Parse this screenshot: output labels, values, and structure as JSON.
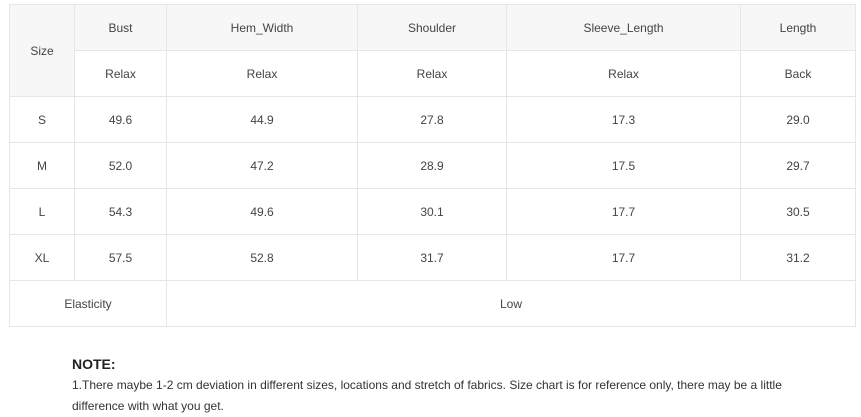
{
  "table": {
    "size_header": "Size",
    "columns": [
      {
        "name": "Bust",
        "sub": "Relax"
      },
      {
        "name": "Hem_Width",
        "sub": "Relax"
      },
      {
        "name": "Shoulder",
        "sub": "Relax"
      },
      {
        "name": "Sleeve_Length",
        "sub": "Relax"
      },
      {
        "name": "Length",
        "sub": "Back"
      }
    ],
    "rows": [
      {
        "size": "S",
        "values": [
          "49.6",
          "44.9",
          "27.8",
          "17.3",
          "29.0"
        ]
      },
      {
        "size": "M",
        "values": [
          "52.0",
          "47.2",
          "28.9",
          "17.5",
          "29.7"
        ]
      },
      {
        "size": "L",
        "values": [
          "54.3",
          "49.6",
          "30.1",
          "17.7",
          "30.5"
        ]
      },
      {
        "size": "XL",
        "values": [
          "57.5",
          "52.8",
          "31.7",
          "17.7",
          "31.2"
        ]
      }
    ],
    "elasticity": {
      "label": "Elasticity",
      "value": "Low"
    }
  },
  "note": {
    "title": "NOTE:",
    "text": "1.There maybe 1-2 cm deviation in different sizes, locations and stretch of fabrics. Size chart is for reference only, there may be a little difference with what you get."
  }
}
